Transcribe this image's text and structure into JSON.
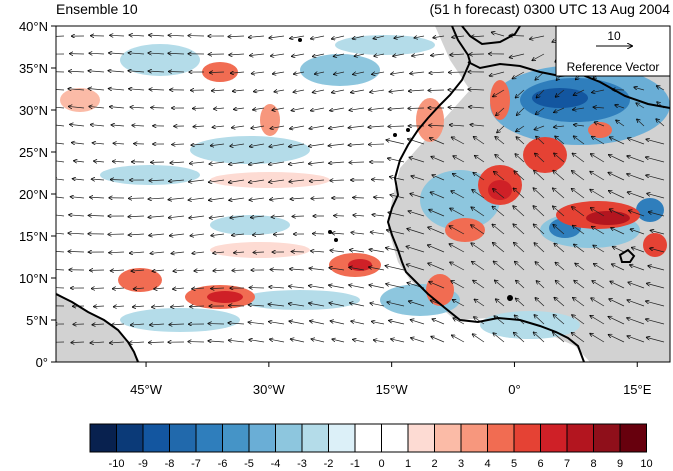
{
  "header": {
    "left_title": "Ensemble 10",
    "right_title": "(51 h forecast) 0300 UTC 13 Aug 2004"
  },
  "map": {
    "lat_labels": [
      "0°",
      "5°N",
      "10°N",
      "15°N",
      "20°N",
      "25°N",
      "30°N",
      "35°N",
      "40°N"
    ],
    "lon_labels": [
      "45°W",
      "30°W",
      "15°W",
      "0°",
      "15°E"
    ],
    "lon_range": [
      -56,
      19
    ],
    "lat_range": [
      0,
      40
    ],
    "land_fill": "#c8c8c8",
    "ocean_fill": "#ffffff"
  },
  "reference_vector": {
    "value": "10",
    "label": "Reference Vector"
  },
  "colorbar": {
    "labels": [
      "-10",
      "-9",
      "-8",
      "-7",
      "-6",
      "-5",
      "-4",
      "-3",
      "-2",
      "-1",
      "0",
      "1",
      "2",
      "3",
      "4",
      "5",
      "6",
      "7",
      "8",
      "9",
      "10"
    ],
    "colors": [
      "#08214f",
      "#0b3a78",
      "#1356a0",
      "#2169ac",
      "#2f7ebc",
      "#4594c7",
      "#6aaed6",
      "#8dc6de",
      "#b4dce9",
      "#dcf0f8",
      "#ffffff",
      "#ffffff",
      "#fddbd3",
      "#fbbba7",
      "#f7977d",
      "#f16c52",
      "#e54234",
      "#cf2027",
      "#b3151f",
      "#8f0f1a",
      "#67000d"
    ]
  }
}
